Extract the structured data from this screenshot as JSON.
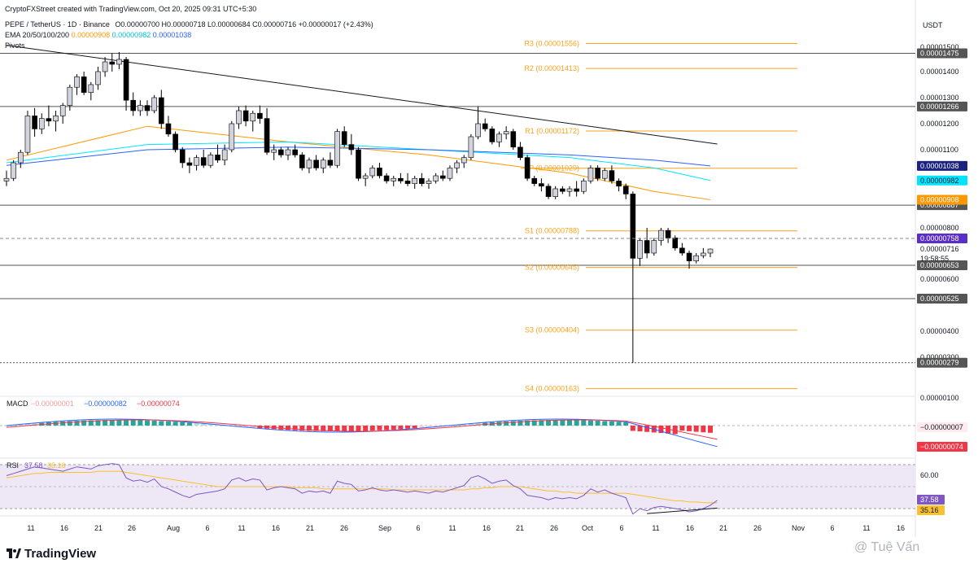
{
  "header": {
    "created_by": "CryptoFXStreet created with TradingView.com, Oct 20, 2025 09:31 UTC+5:30",
    "symbol": "PEPE / TetherUS · 1D · Binance",
    "ohlc": "O0.00000700 H0.00000718 L0.00000684 C0.00000716 +0.00000017 (+2.43%)",
    "ema_label": "EMA 20/50/100/200",
    "ema_values": [
      "0.00000908",
      "0.00000982",
      "0.00001038"
    ],
    "pivots_label": "Pivots"
  },
  "currency": "USDT",
  "colors": {
    "up": "#d1d4dc",
    "down": "#000000",
    "ema20": "#ff9800",
    "ema50": "#00e5ff",
    "ema100": "#2962ff",
    "pivot": "#f7a21b",
    "macd_line": "#2962ff",
    "signal_line": "#f23645",
    "hist_pos": "#26a69a",
    "hist_neg": "#f23645",
    "rsi_line": "#7e57c2",
    "rsi_ma": "#fbc02d"
  },
  "chart_data": {
    "type": "candlestick",
    "price_ylim": [
      1e-06,
      1.5e-06
    ],
    "y_tick_labels": [
      "0.00001500",
      "0.00001400",
      "0.00001300",
      "0.00001200",
      "0.00001100",
      "0.00000800",
      "0.00000600",
      "0.00000400",
      "0.00000300",
      "0.00000100"
    ],
    "x_tick_labels": [
      "11",
      "16",
      "21",
      "26",
      "Aug",
      "6",
      "11",
      "16",
      "21",
      "26",
      "Sep",
      "6",
      "11",
      "16",
      "21",
      "26",
      "Oct",
      "6",
      "11",
      "16",
      "21",
      "26",
      "Nov",
      "6",
      "11",
      "16"
    ],
    "candles": [
      [
        9.8e-06,
        1.02e-05,
        9.6e-06,
        9.9e-06
      ],
      [
        9.9e-06,
        1.06e-05,
        9.8e-06,
        1.05e-05
      ],
      [
        1.05e-05,
        1.1e-05,
        1.03e-05,
        1.09e-05
      ],
      [
        1.09e-05,
        1.25e-05,
        1.08e-05,
        1.23e-05
      ],
      [
        1.23e-05,
        1.26e-05,
        1.15e-05,
        1.18e-05
      ],
      [
        1.18e-05,
        1.24e-05,
        1.16e-05,
        1.22e-05
      ],
      [
        1.22e-05,
        1.27e-05,
        1.19e-05,
        1.21e-05
      ],
      [
        1.21e-05,
        1.25e-05,
        1.17e-05,
        1.23e-05
      ],
      [
        1.23e-05,
        1.28e-05,
        1.2e-05,
        1.27e-05
      ],
      [
        1.27e-05,
        1.35e-05,
        1.25e-05,
        1.34e-05
      ],
      [
        1.34e-05,
        1.39e-05,
        1.31e-05,
        1.38e-05
      ],
      [
        1.38e-05,
        1.4e-05,
        1.31e-05,
        1.32e-05
      ],
      [
        1.32e-05,
        1.36e-05,
        1.29e-05,
        1.35e-05
      ],
      [
        1.35e-05,
        1.42e-05,
        1.33e-05,
        1.4e-05
      ],
      [
        1.4e-05,
        1.46e-05,
        1.38e-05,
        1.44e-05
      ],
      [
        1.44e-05,
        1.475e-05,
        1.4e-05,
        1.43e-05
      ],
      [
        1.43e-05,
        1.48e-05,
        1.41e-05,
        1.45e-05
      ],
      [
        1.45e-05,
        1.46e-05,
        1.25e-05,
        1.29e-05
      ],
      [
        1.29e-05,
        1.32e-05,
        1.23e-05,
        1.25e-05
      ],
      [
        1.25e-05,
        1.29e-05,
        1.23e-05,
        1.27e-05
      ],
      [
        1.27e-05,
        1.29e-05,
        1.23e-05,
        1.25e-05
      ],
      [
        1.25e-05,
        1.31e-05,
        1.24e-05,
        1.3e-05
      ],
      [
        1.3e-05,
        1.33e-05,
        1.18e-05,
        1.2e-05
      ],
      [
        1.2e-05,
        1.23e-05,
        1.15e-05,
        1.16e-05
      ],
      [
        1.16e-05,
        1.17e-05,
        1.09e-05,
        1.1e-05
      ],
      [
        1.1e-05,
        1.11e-05,
        1.03e-05,
        1.05e-05
      ],
      [
        1.05e-05,
        1.07e-05,
        1.01e-05,
        1.04e-05
      ],
      [
        1.04e-05,
        1.08e-05,
        1.02e-05,
        1.07e-05
      ],
      [
        1.07e-05,
        1.1e-05,
        1.03e-05,
        1.04e-05
      ],
      [
        1.04e-05,
        1.09e-05,
        1.03e-05,
        1.08e-05
      ],
      [
        1.08e-05,
        1.12e-05,
        1.05e-05,
        1.06e-05
      ],
      [
        1.06e-05,
        1.12e-05,
        1.04e-05,
        1.1e-05
      ],
      [
        1.1e-05,
        1.21e-05,
        1.09e-05,
        1.2e-05
      ],
      [
        1.2e-05,
        1.266e-05,
        1.18e-05,
        1.25e-05
      ],
      [
        1.25e-05,
        1.27e-05,
        1.19e-05,
        1.21e-05
      ],
      [
        1.21e-05,
        1.25e-05,
        1.17e-05,
        1.24e-05
      ],
      [
        1.24e-05,
        1.27e-05,
        1.2e-05,
        1.22e-05
      ],
      [
        1.22e-05,
        1.26e-05,
        1.08e-05,
        1.09e-05
      ],
      [
        1.09e-05,
        1.12e-05,
        1.06e-05,
        1.1e-05
      ],
      [
        1.1e-05,
        1.11e-05,
        1.07e-05,
        1.08e-05
      ],
      [
        1.08e-05,
        1.11e-05,
        1.06e-05,
        1.1e-05
      ],
      [
        1.1e-05,
        1.12e-05,
        1.07e-05,
        1.08e-05
      ],
      [
        1.08e-05,
        1.09e-05,
        1.02e-05,
        1.03e-05
      ],
      [
        1.03e-05,
        1.07e-05,
        1.01e-05,
        1.06e-05
      ],
      [
        1.06e-05,
        1.08e-05,
        1.02e-05,
        1.03e-05
      ],
      [
        1.03e-05,
        1.07e-05,
        1.01e-05,
        1.06e-05
      ],
      [
        1.06e-05,
        1.09e-05,
        1.03e-05,
        1.04e-05
      ],
      [
        1.04e-05,
        1.18e-05,
        1.03e-05,
        1.17e-05
      ],
      [
        1.17e-05,
        1.19e-05,
        1.11e-05,
        1.12e-05
      ],
      [
        1.12e-05,
        1.16e-05,
        1.08e-05,
        1.1e-05
      ],
      [
        1.1e-05,
        1.11e-05,
        9.8e-06,
        9.9e-06
      ],
      [
        9.9e-06,
        1.01e-05,
        9.6e-06,
        1e-05
      ],
      [
        1e-05,
        1.04e-05,
        9.9e-06,
        1.03e-05
      ],
      [
        1.03e-05,
        1.05e-05,
        9.9e-06,
        1e-05
      ],
      [
        1e-05,
        1.01e-05,
        9.7e-06,
        9.8e-06
      ],
      [
        9.8e-06,
        1e-05,
        9.6e-06,
        9.9e-06
      ],
      [
        9.9e-06,
        1.01e-05,
        9.7e-06,
        9.8e-06
      ],
      [
        9.8e-06,
        1.01e-05,
        9.6e-06,
        9.7e-06
      ],
      [
        9.7e-06,
        1e-05,
        9.5e-06,
        9.9e-06
      ],
      [
        9.9e-06,
        1.01e-05,
        9.6e-06,
        9.7e-06
      ],
      [
        9.7e-06,
        9.9e-06,
        9.5e-06,
        9.8e-06
      ],
      [
        9.8e-06,
        1.01e-05,
        9.7e-06,
        1e-05
      ],
      [
        1e-05,
        1.02e-05,
        9.8e-06,
        9.9e-06
      ],
      [
        9.9e-06,
        1.04e-05,
        9.8e-06,
        1.03e-05
      ],
      [
        1.03e-05,
        1.06e-05,
        1.01e-05,
        1.05e-05
      ],
      [
        1.05e-05,
        1.08e-05,
        1.03e-05,
        1.07e-05
      ],
      [
        1.07e-05,
        1.16e-05,
        1.06e-05,
        1.15e-05
      ],
      [
        1.15e-05,
        1.266e-05,
        1.14e-05,
        1.2e-05
      ],
      [
        1.2e-05,
        1.22e-05,
        1.17e-05,
        1.18e-05
      ],
      [
        1.18e-05,
        1.19e-05,
        1.12e-05,
        1.13e-05
      ],
      [
        1.13e-05,
        1.17e-05,
        1.11e-05,
        1.16e-05
      ],
      [
        1.16e-05,
        1.19e-05,
        1.14e-05,
        1.17e-05
      ],
      [
        1.17e-05,
        1.18e-05,
        1.1e-05,
        1.11e-05
      ],
      [
        1.11e-05,
        1.13e-05,
        1.06e-05,
        1.07e-05
      ],
      [
        1.07e-05,
        1.08e-05,
        9.8e-06,
        9.9e-06
      ],
      [
        9.9e-06,
        1e-05,
        9.6e-06,
        9.7e-06
      ],
      [
        9.7e-06,
        9.9e-06,
        9.4e-06,
        9.6e-06
      ],
      [
        9.6e-06,
        9.7e-06,
        9.1e-06,
        9.2e-06
      ],
      [
        9.2e-06,
        9.6e-06,
        9.1e-06,
        9.5e-06
      ],
      [
        9.5e-06,
        9.6e-06,
        9.3e-06,
        9.4e-06
      ],
      [
        9.4e-06,
        9.6e-06,
        9.2e-06,
        9.5e-06
      ],
      [
        9.5e-06,
        9.8e-06,
        9.2e-06,
        9.4e-06
      ],
      [
        9.4e-06,
        9.9e-06,
        9.3e-06,
        9.8e-06
      ],
      [
        9.8e-06,
        1.04e-05,
        9.7e-06,
        1.03e-05
      ],
      [
        1.03e-05,
        1.04e-05,
        9.8e-06,
        9.9e-06
      ],
      [
        9.9e-06,
        1.03e-05,
        9.8e-06,
        1.02e-05
      ],
      [
        1.02e-05,
        1.04e-05,
        9.7e-06,
        9.8e-06
      ],
      [
        9.8e-06,
        9.9e-06,
        9.4e-06,
        9.6e-06
      ],
      [
        9.6e-06,
        9.7e-06,
        9.1e-06,
        9.3e-06
      ],
      [
        9.3e-06,
        9.4e-06,
        2.79e-06,
        6.8e-06
      ],
      [
        6.8e-06,
        7.6e-06,
        6.5e-06,
        7.5e-06
      ],
      [
        7.5e-06,
        8e-06,
        6.8e-06,
        7e-06
      ],
      [
        7e-06,
        7.6e-06,
        6.9e-06,
        7.5e-06
      ],
      [
        7.5e-06,
        8e-06,
        7.3e-06,
        7.9e-06
      ],
      [
        7.9e-06,
        8e-06,
        7.4e-06,
        7.6e-06
      ],
      [
        7.6e-06,
        7.7e-06,
        7.1e-06,
        7.2e-06
      ],
      [
        7.2e-06,
        7.4e-06,
        6.9e-06,
        7e-06
      ],
      [
        7e-06,
        7.1e-06,
        6.4e-06,
        6.7e-06
      ],
      [
        6.7e-06,
        7e-06,
        6.6e-06,
        6.9e-06
      ],
      [
        6.9e-06,
        7.2e-06,
        6.8e-06,
        7e-06
      ],
      [
        7e-06,
        7.18e-06,
        6.84e-06,
        7.16e-06
      ]
    ],
    "ema_paths": {
      "ema20": [
        [
          0,
          1.06e-05
        ],
        [
          20,
          1.19e-05
        ],
        [
          40,
          1.13e-05
        ],
        [
          60,
          1.08e-05
        ],
        [
          80,
          1.01e-05
        ],
        [
          92,
          9.4e-06
        ],
        [
          100,
          9.08e-06
        ]
      ],
      "ema50": [
        [
          0,
          1.05e-05
        ],
        [
          20,
          1.12e-05
        ],
        [
          40,
          1.13e-05
        ],
        [
          60,
          1.1e-05
        ],
        [
          80,
          1.07e-05
        ],
        [
          92,
          1.03e-05
        ],
        [
          100,
          9.82e-06
        ]
      ],
      "ema100": [
        [
          0,
          1.04e-05
        ],
        [
          20,
          1.1e-05
        ],
        [
          40,
          1.11e-05
        ],
        [
          60,
          1.1e-05
        ],
        [
          80,
          1.08e-05
        ],
        [
          92,
          1.06e-05
        ],
        [
          100,
          1.038e-05
        ]
      ]
    },
    "pivots": [
      {
        "label": "R3 (0.00001556)",
        "value": 1.556e-05
      },
      {
        "label": "R2 (0.00001413)",
        "value": 1.413e-05
      },
      {
        "label": "R1 (0.00001172)",
        "value": 1.172e-05
      },
      {
        "label": "P (0.00001029)",
        "value": 1.029e-05
      },
      {
        "label": "S1 (0.00000788)",
        "value": 7.88e-06
      },
      {
        "label": "S2 (0.00000645)",
        "value": 6.45e-06
      },
      {
        "label": "S3 (0.00000404)",
        "value": 4.04e-06
      },
      {
        "label": "S4 (0.00000163)",
        "value": 1.63e-06
      }
    ],
    "horizontal_levels": [
      {
        "label": "0.00001475",
        "value": 1.475e-05,
        "color": "#555555"
      },
      {
        "label": "0.00001266",
        "value": 1.266e-05,
        "color": "#555555"
      },
      {
        "label": "0.00000887",
        "value": 8.87e-06,
        "color": "#555555"
      },
      {
        "label": "0.00000653",
        "value": 6.53e-06,
        "color": "#555555"
      },
      {
        "label": "0.00000525",
        "value": 5.25e-06,
        "color": "#555555"
      },
      {
        "label": "0.00000279",
        "value": 2.79e-06,
        "color": "#555555"
      }
    ],
    "price_badges": [
      {
        "label": "0.00001038",
        "value": 1.038e-05,
        "bg": "#1a237e",
        "fg": "#ffffff"
      },
      {
        "label": "0.00000982",
        "value": 9.82e-06,
        "bg": "#00e5ff",
        "fg": "#131722"
      },
      {
        "label": "0.00000908",
        "value": 9.08e-06,
        "bg": "#ff9800",
        "fg": "#ffffff"
      },
      {
        "label": "0.00000758",
        "value": 7.58e-06,
        "bg": "#5b2dc9",
        "fg": "#ffffff"
      }
    ],
    "last_price": {
      "label": "0.00000716",
      "countdown": "19:58:55",
      "value": 7.16e-06
    },
    "trendline": {
      "start": [
        0,
        1.53e-05
      ],
      "end": [
        101,
        1.122e-05
      ]
    },
    "macd": {
      "label": "MACD",
      "values": [
        "−0.00000001",
        "−0.00000082",
        "−0.00000074"
      ],
      "axis_labels": [
        "−0.00000007",
        "−0.00000074"
      ]
    },
    "rsi": {
      "label": "RSI",
      "values": [
        "37.58",
        "35.16"
      ],
      "axis_labels": [
        "60.00",
        "37.58",
        "35.16"
      ],
      "upper": 70,
      "lower": 30,
      "series": [
        60,
        62,
        64,
        66,
        68,
        67,
        66,
        65,
        64,
        66,
        68,
        67,
        66,
        69,
        70,
        71,
        70,
        58,
        55,
        56,
        54,
        57,
        50,
        48,
        45,
        42,
        40,
        43,
        44,
        45,
        46,
        48,
        56,
        58,
        55,
        57,
        56,
        47,
        49,
        50,
        49,
        48,
        44,
        46,
        45,
        46,
        44,
        55,
        53,
        52,
        46,
        47,
        49,
        47,
        46,
        47,
        46,
        45,
        46,
        45,
        44,
        46,
        45,
        47,
        49,
        51,
        58,
        60,
        57,
        53,
        55,
        56,
        51,
        48,
        42,
        41,
        40,
        38,
        40,
        39,
        40,
        39,
        42,
        48,
        45,
        47,
        44,
        42,
        40,
        25,
        30,
        28,
        31,
        32,
        31,
        30,
        29,
        27,
        28,
        30,
        33,
        37.58
      ],
      "ma": [
        58,
        59,
        60,
        61,
        62,
        62,
        63,
        63,
        63,
        63,
        63,
        63,
        63,
        64,
        64,
        64,
        64,
        63,
        62,
        61,
        60,
        59,
        58,
        57,
        56,
        55,
        54,
        53,
        52,
        51,
        50,
        50,
        50,
        50,
        50,
        50,
        50,
        50,
        50,
        50,
        50,
        49,
        49,
        49,
        49,
        48,
        48,
        48,
        48,
        48,
        48,
        48,
        48,
        48,
        48,
        47,
        47,
        47,
        47,
        47,
        47,
        47,
        47,
        47,
        47,
        47,
        48,
        48,
        49,
        49,
        50,
        50,
        50,
        50,
        49,
        48,
        47,
        46,
        46,
        45,
        45,
        44,
        44,
        44,
        44,
        44,
        44,
        44,
        44,
        43,
        42,
        41,
        40,
        39,
        38,
        37,
        37,
        36,
        36,
        35.5,
        35.3,
        35.16
      ]
    }
  },
  "watermark": "@ Tuệ Vấn",
  "brand": "TradingView"
}
